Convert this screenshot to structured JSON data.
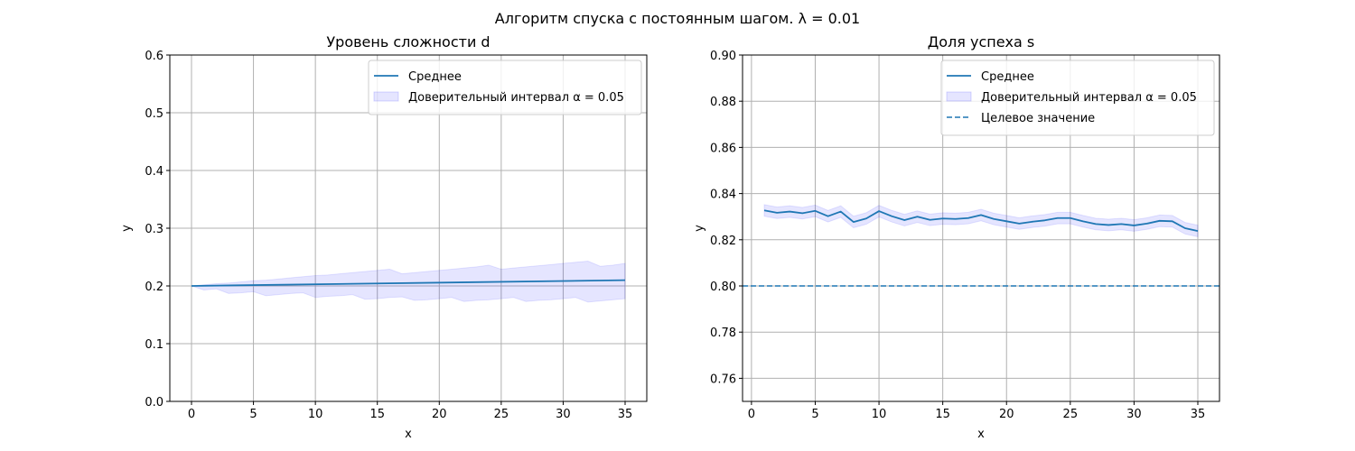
{
  "figure": {
    "suptitle": "Алгоритм спуска с постоянным шагом. λ = 0.01"
  },
  "colors": {
    "mean_line": "#1f77b4",
    "ci_fill": "#0000ff",
    "target_line": "#1f77b4",
    "grid": "#b0b0b0"
  },
  "chart_data": [
    {
      "type": "line",
      "title": "Уровень сложности d",
      "xlabel": "x",
      "ylabel": "y",
      "xlim": [
        -1.75,
        36.75
      ],
      "ylim": [
        0,
        0.6
      ],
      "xticks": [
        0,
        5,
        10,
        15,
        20,
        25,
        30,
        35
      ],
      "xtick_labels": [
        "0",
        "5",
        "10",
        "15",
        "20",
        "25",
        "30",
        "35"
      ],
      "yticks": [
        0,
        0.1,
        0.2,
        0.3,
        0.4,
        0.5,
        0.6
      ],
      "ytick_labels": [
        "0.0",
        "0.1",
        "0.2",
        "0.3",
        "0.4",
        "0.5",
        "0.6"
      ],
      "grid": true,
      "legend_position": "top-right",
      "series": [
        {
          "name": "Среднее",
          "kind": "line",
          "x": [
            0,
            35
          ],
          "y": [
            0.2,
            0.21
          ]
        },
        {
          "name": "Доверительный интервал α = 0.05",
          "kind": "band",
          "x": [
            0,
            1,
            2,
            3,
            4,
            5,
            6,
            7,
            8,
            9,
            10,
            11,
            12,
            13,
            14,
            15,
            16,
            17,
            18,
            19,
            20,
            21,
            22,
            23,
            24,
            25,
            26,
            27,
            28,
            29,
            30,
            31,
            32,
            33,
            34,
            35
          ],
          "upper": [
            0.2,
            0.202,
            0.204,
            0.205,
            0.207,
            0.209,
            0.21,
            0.212,
            0.214,
            0.216,
            0.218,
            0.219,
            0.221,
            0.223,
            0.225,
            0.227,
            0.229,
            0.221,
            0.223,
            0.225,
            0.227,
            0.229,
            0.231,
            0.233,
            0.236,
            0.229,
            0.231,
            0.233,
            0.235,
            0.237,
            0.239,
            0.241,
            0.243,
            0.234,
            0.236,
            0.239
          ],
          "lower": [
            0.2,
            0.193,
            0.195,
            0.187,
            0.188,
            0.19,
            0.183,
            0.185,
            0.187,
            0.188,
            0.18,
            0.182,
            0.183,
            0.185,
            0.177,
            0.178,
            0.18,
            0.181,
            0.175,
            0.176,
            0.178,
            0.18,
            0.173,
            0.175,
            0.176,
            0.178,
            0.18,
            0.173,
            0.175,
            0.176,
            0.178,
            0.18,
            0.172,
            0.174,
            0.176,
            0.178
          ]
        }
      ]
    },
    {
      "type": "line",
      "title": "Доля успеха s",
      "xlabel": "x",
      "ylabel": "y",
      "xlim": [
        -0.7,
        36.7
      ],
      "ylim": [
        0.75,
        0.9
      ],
      "xticks": [
        0,
        5,
        10,
        15,
        20,
        25,
        30,
        35
      ],
      "xtick_labels": [
        "0",
        "5",
        "10",
        "15",
        "20",
        "25",
        "30",
        "35"
      ],
      "yticks": [
        0.76,
        0.78,
        0.8,
        0.82,
        0.84,
        0.86,
        0.88,
        0.9
      ],
      "ytick_labels": [
        "0.76",
        "0.78",
        "0.80",
        "0.82",
        "0.84",
        "0.86",
        "0.88",
        "0.90"
      ],
      "grid": true,
      "legend_position": "top-right",
      "series": [
        {
          "name": "Среднее",
          "kind": "line",
          "x": [
            1,
            2,
            3,
            4,
            5,
            6,
            7,
            8,
            9,
            10,
            11,
            12,
            13,
            14,
            15,
            16,
            17,
            18,
            19,
            20,
            21,
            22,
            23,
            24,
            25,
            26,
            27,
            28,
            29,
            30,
            31,
            32,
            33,
            34,
            35
          ],
          "y": [
            0.8327,
            0.8317,
            0.8322,
            0.8315,
            0.8325,
            0.8302,
            0.8322,
            0.8277,
            0.8292,
            0.8324,
            0.8302,
            0.8285,
            0.83,
            0.8286,
            0.8292,
            0.829,
            0.8294,
            0.8307,
            0.829,
            0.828,
            0.827,
            0.8278,
            0.8284,
            0.8294,
            0.8294,
            0.828,
            0.8268,
            0.8264,
            0.8268,
            0.8262,
            0.827,
            0.8282,
            0.828,
            0.825,
            0.8238
          ]
        },
        {
          "name": "Доверительный интервал α = 0.05",
          "kind": "band",
          "x": [
            1,
            2,
            3,
            4,
            5,
            6,
            7,
            8,
            9,
            10,
            11,
            12,
            13,
            14,
            15,
            16,
            17,
            18,
            19,
            20,
            21,
            22,
            23,
            24,
            25,
            26,
            27,
            28,
            29,
            30,
            31,
            32,
            33,
            34,
            35
          ],
          "upper": [
            0.8352,
            0.8342,
            0.8347,
            0.834,
            0.835,
            0.8327,
            0.8347,
            0.8302,
            0.8317,
            0.8349,
            0.8327,
            0.831,
            0.8325,
            0.8311,
            0.8317,
            0.8315,
            0.8319,
            0.8332,
            0.8315,
            0.8305,
            0.8295,
            0.8303,
            0.8309,
            0.8319,
            0.8319,
            0.8305,
            0.8293,
            0.8289,
            0.8293,
            0.8287,
            0.8295,
            0.8307,
            0.8305,
            0.8275,
            0.8263
          ],
          "lower": [
            0.8302,
            0.8292,
            0.8297,
            0.829,
            0.83,
            0.8277,
            0.8297,
            0.8252,
            0.8267,
            0.8299,
            0.8277,
            0.826,
            0.8275,
            0.8261,
            0.8267,
            0.8265,
            0.8269,
            0.8282,
            0.8265,
            0.8255,
            0.8245,
            0.8253,
            0.8259,
            0.8269,
            0.8269,
            0.8255,
            0.8243,
            0.8239,
            0.8243,
            0.8237,
            0.8245,
            0.8257,
            0.8255,
            0.8225,
            0.8213
          ]
        },
        {
          "name": "Целевое значение",
          "kind": "hline",
          "y": 0.8
        }
      ]
    }
  ]
}
